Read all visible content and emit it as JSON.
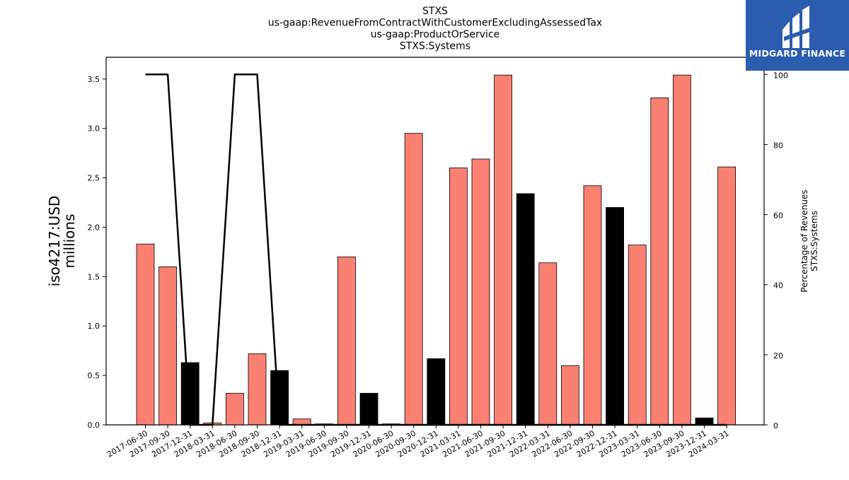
{
  "brand": {
    "name": "MIDGARD FINANCE",
    "bg_color": "#2b5cad"
  },
  "chart_data": {
    "type": "bar",
    "title_lines": [
      "STXS",
      "us-gaap:RevenueFromContractWithCustomerExcludingAssessedTax",
      "us-gaap:ProductOrService",
      "STXS:Systems"
    ],
    "ylabel_left_lines": [
      "iso4217:USD",
      "millions"
    ],
    "ylabel_right_lines": [
      "Percentage of Revenues",
      "STXS:Systems"
    ],
    "categories": [
      "2017-06-30",
      "2017-09-30",
      "2017-12-31",
      "2018-03-31",
      "2018-06-30",
      "2018-09-30",
      "2018-12-31",
      "2019-03-31",
      "2019-06-30",
      "2019-09-30",
      "2019-12-31",
      "2020-06-30",
      "2020-09-30",
      "2020-12-31",
      "2021-03-31",
      "2021-06-30",
      "2021-09-30",
      "2021-12-31",
      "2022-03-31",
      "2022-06-30",
      "2022-09-30",
      "2022-12-31",
      "2023-03-31",
      "2023-06-30",
      "2023-09-30",
      "2023-12-31",
      "2024-03-31"
    ],
    "values": [
      1.83,
      1.6,
      0.63,
      0.02,
      0.32,
      0.72,
      0.55,
      0.06,
      0.01,
      1.7,
      0.32,
      0.01,
      2.95,
      0.67,
      2.6,
      2.69,
      3.54,
      2.34,
      1.64,
      0.6,
      2.42,
      2.2,
      1.82,
      3.31,
      3.54,
      0.07,
      2.61
    ],
    "bar_colors": [
      "#fa8072",
      "#fa8072",
      "#000000",
      "#fa8072",
      "#fa8072",
      "#fa8072",
      "#000000",
      "#fa8072",
      "#fa8072",
      "#fa8072",
      "#000000",
      "#000000",
      "#fa8072",
      "#000000",
      "#fa8072",
      "#fa8072",
      "#fa8072",
      "#000000",
      "#fa8072",
      "#fa8072",
      "#fa8072",
      "#000000",
      "#fa8072",
      "#fa8072",
      "#fa8072",
      "#000000",
      "#fa8072"
    ],
    "percentage_line": [
      100,
      100,
      0,
      0,
      100,
      100,
      0,
      0,
      0,
      0,
      0,
      0,
      0,
      0,
      0,
      0,
      0,
      0,
      0,
      0,
      0,
      0,
      0,
      0,
      0,
      0,
      0
    ],
    "ylim_left": [
      0,
      3.72
    ],
    "ylim_right": [
      0,
      104.9
    ],
    "yticks_left": [
      "0.0",
      "0.5",
      "1.0",
      "1.5",
      "2.0",
      "2.5",
      "3.0",
      "3.5"
    ],
    "yticks_right": [
      "0",
      "20",
      "40",
      "60",
      "80",
      "100"
    ],
    "line_color": "#000000",
    "grid": false
  }
}
